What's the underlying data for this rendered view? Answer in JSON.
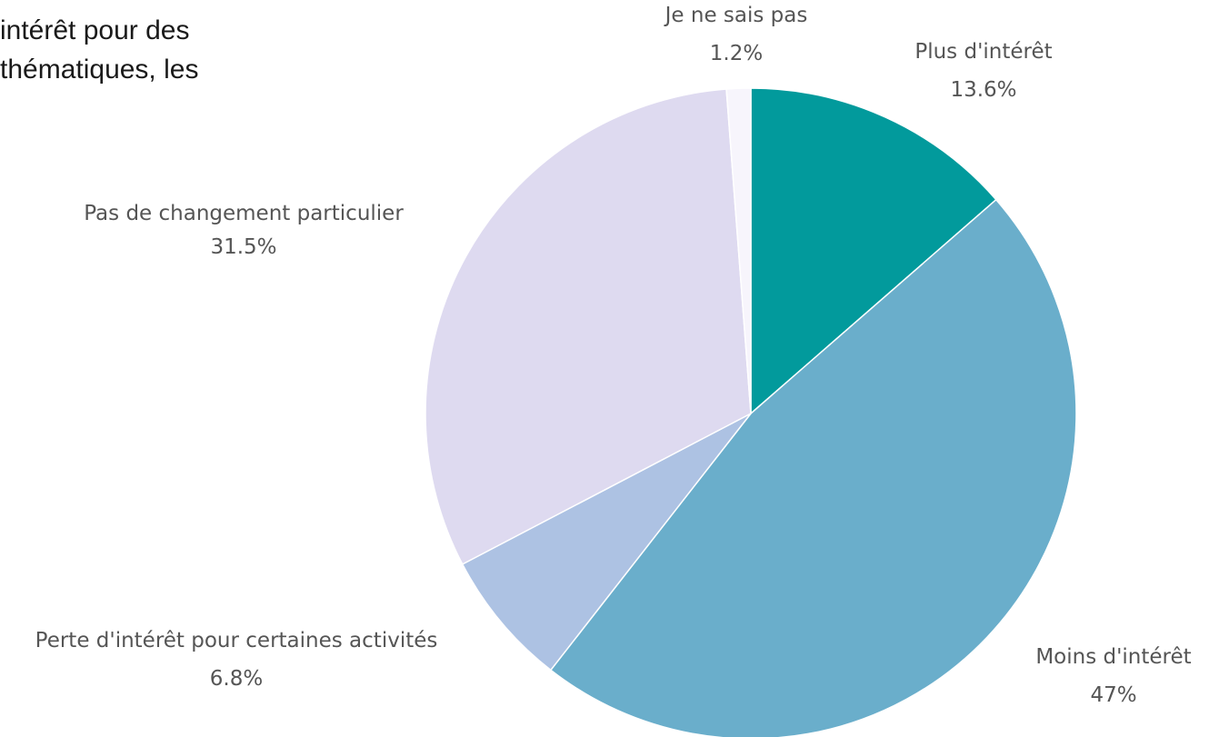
{
  "intro_text": {
    "line1": "intérêt pour des",
    "line2": "thématiques,  les"
  },
  "chart_data": {
    "type": "pie",
    "start_angle_deg": 0,
    "direction": "clockwise",
    "slices": [
      {
        "label": "Plus d'intérêt",
        "value": 13.6,
        "value_label": "13.6%",
        "color": "#029a9c"
      },
      {
        "label": "Moins d'intérêt",
        "value": 47,
        "value_label": "47%",
        "color": "#6aaecb"
      },
      {
        "label": "Perte d'intérêt pour certaines activités",
        "value": 6.8,
        "value_label": "6.8%",
        "color": "#adc2e3"
      },
      {
        "label": "Pas de changement particulier",
        "value": 31.5,
        "value_label": "31.5%",
        "color": "#dedaf0"
      },
      {
        "label": "Je ne sais pas",
        "value": 1.2,
        "value_label": "1.2%",
        "color": "#f7f5fc"
      }
    ]
  }
}
